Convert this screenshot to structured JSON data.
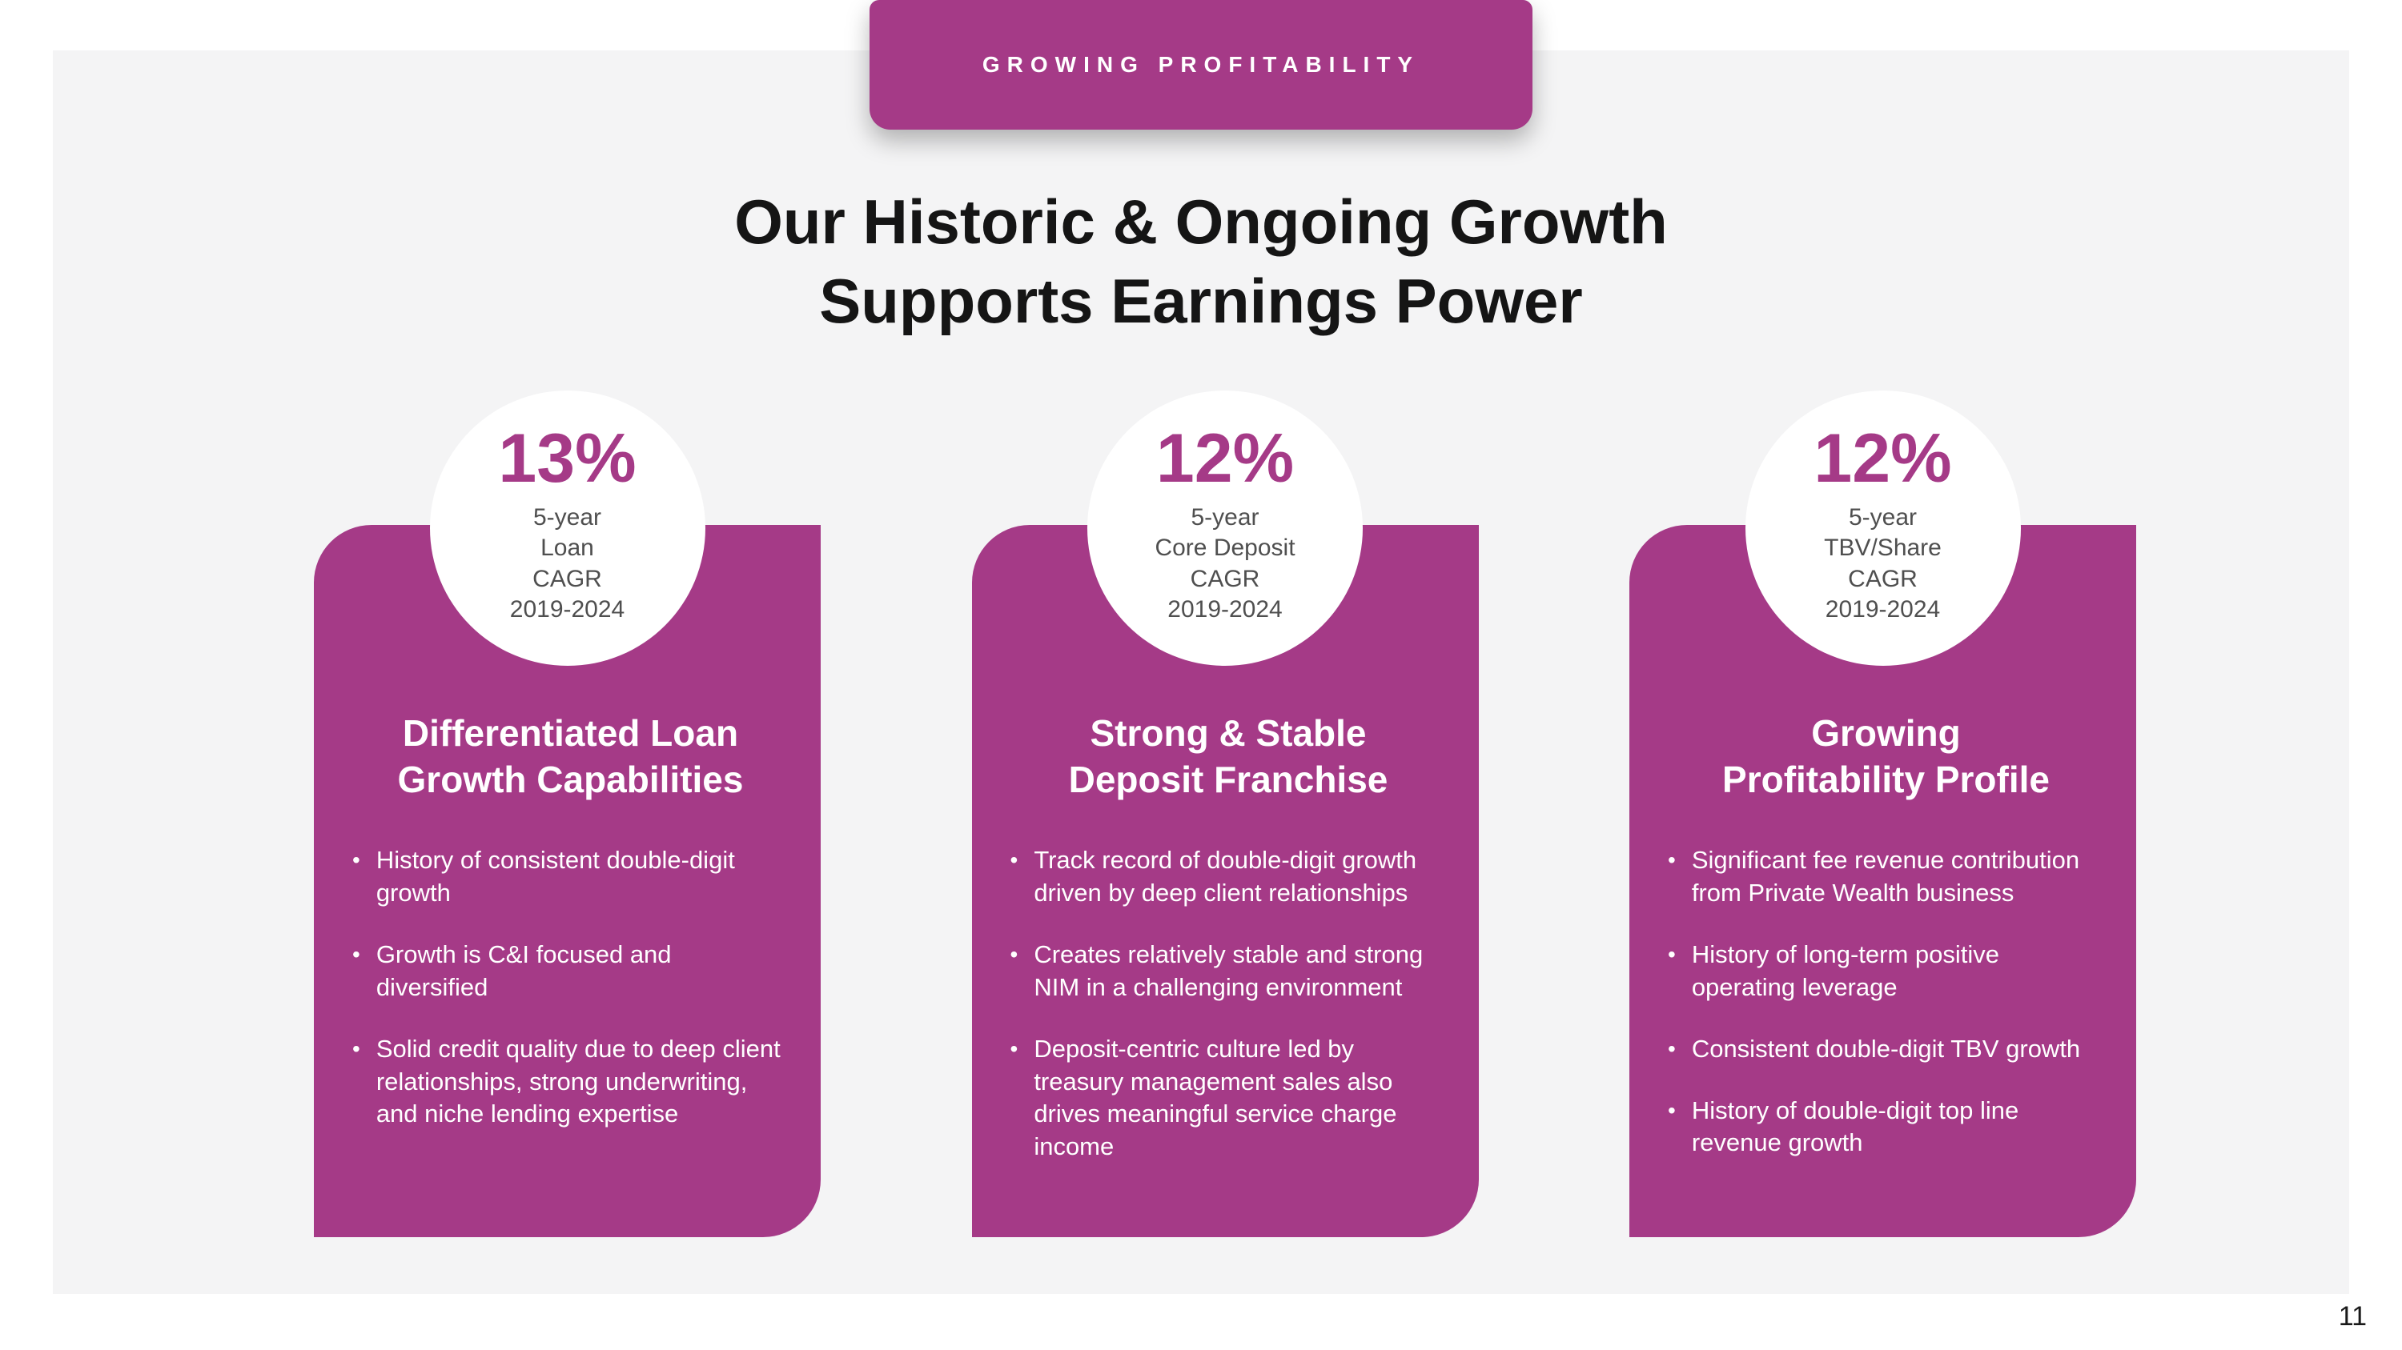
{
  "page": {
    "badge_label": "GROWING PROFITABILITY",
    "title_line1": "Our Historic & Ongoing Growth",
    "title_line2": "Supports Earnings Power",
    "page_number": "11",
    "colors": {
      "accent": "#A53A87",
      "panel_background": "#F4F4F5",
      "title_text": "#151515",
      "circle_subtext": "#4F4F4F"
    }
  },
  "bullet_glyph": "•",
  "cards": [
    {
      "stat": "13%",
      "stat_lines": [
        "5-year",
        "Loan",
        "CAGR",
        "2019-2024"
      ],
      "title_line1": "Differentiated Loan",
      "title_line2": "Growth Capabilities",
      "bullets": [
        "History of consistent double-digit growth",
        "Growth is C&I focused and diversified",
        "Solid credit quality due to deep client relationships, strong underwriting, and niche lending expertise"
      ]
    },
    {
      "stat": "12%",
      "stat_lines": [
        "5-year",
        "Core Deposit",
        "CAGR",
        "2019-2024"
      ],
      "title_line1": "Strong & Stable",
      "title_line2": "Deposit Franchise",
      "bullets": [
        "Track record of double-digit growth driven by deep client relationships",
        "Creates relatively stable and strong NIM in a challenging environment",
        "Deposit-centric culture led by treasury management sales also drives meaningful service charge income"
      ]
    },
    {
      "stat": "12%",
      "stat_lines": [
        "5-year",
        "TBV/Share",
        "CAGR",
        "2019-2024"
      ],
      "title_line1": "Growing",
      "title_line2": "Profitability Profile",
      "bullets": [
        "Significant fee revenue contribution from Private Wealth business",
        "History of long-term positive operating leverage",
        "Consistent double-digit TBV growth",
        "History of double-digit top line revenue growth"
      ]
    }
  ]
}
